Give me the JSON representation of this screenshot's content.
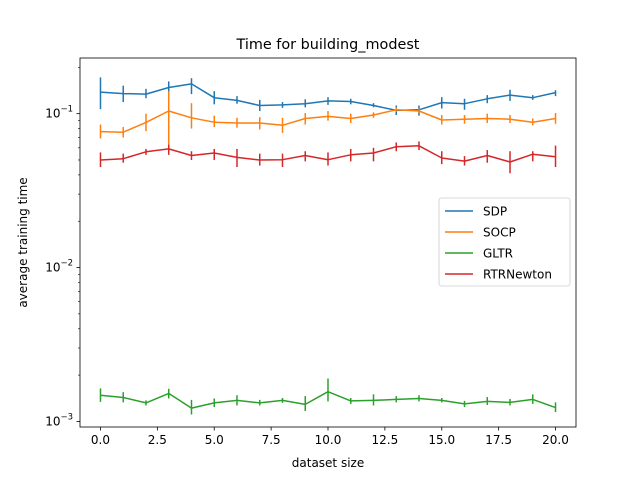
{
  "chart_data": {
    "type": "line",
    "title": "Time for building_modest",
    "xlabel": "dataset size",
    "ylabel": "average training time",
    "yscale": "log",
    "xlim": [
      -0.9,
      20.9
    ],
    "ylim": [
      0.00092,
      0.23
    ],
    "grid": false,
    "legend_position": "center-right",
    "x": [
      0,
      1,
      2,
      3,
      4,
      5,
      6,
      7,
      8,
      9,
      10,
      11,
      12,
      13,
      14,
      15,
      16,
      17,
      18,
      19,
      20
    ],
    "x_ticks": [
      {
        "value": 0,
        "label": "0.0"
      },
      {
        "value": 2.5,
        "label": "2.5"
      },
      {
        "value": 5,
        "label": "5.0"
      },
      {
        "value": 7.5,
        "label": "7.5"
      },
      {
        "value": 10,
        "label": "10.0"
      },
      {
        "value": 12.5,
        "label": "12.5"
      },
      {
        "value": 15,
        "label": "15.0"
      },
      {
        "value": 17.5,
        "label": "17.5"
      },
      {
        "value": 20,
        "label": "20.0"
      }
    ],
    "y_ticks": [
      {
        "value": 0.001,
        "base": "10",
        "exp": "−3"
      },
      {
        "value": 0.01,
        "base": "10",
        "exp": "−2"
      },
      {
        "value": 0.1,
        "base": "10",
        "exp": "−1"
      }
    ],
    "series": [
      {
        "name": "SDP",
        "color": "#1f77b4",
        "values": [
          0.138,
          0.135,
          0.134,
          0.148,
          0.156,
          0.127,
          0.122,
          0.113,
          0.114,
          0.116,
          0.121,
          0.12,
          0.113,
          0.105,
          0.106,
          0.118,
          0.116,
          0.125,
          0.132,
          0.127,
          0.137
        ],
        "err_low": [
          0.107,
          0.119,
          0.126,
          0.133,
          0.134,
          0.115,
          0.116,
          0.104,
          0.109,
          0.11,
          0.114,
          0.115,
          0.11,
          0.098,
          0.097,
          0.108,
          0.106,
          0.117,
          0.121,
          0.123,
          0.13
        ],
        "err_high": [
          0.172,
          0.152,
          0.145,
          0.162,
          0.17,
          0.14,
          0.13,
          0.123,
          0.119,
          0.124,
          0.128,
          0.125,
          0.117,
          0.113,
          0.113,
          0.128,
          0.125,
          0.132,
          0.143,
          0.132,
          0.142
        ]
      },
      {
        "name": "SOCP",
        "color": "#ff7f0e",
        "values": [
          0.0765,
          0.0758,
          0.0877,
          0.104,
          0.094,
          0.088,
          0.087,
          0.087,
          0.084,
          0.093,
          0.096,
          0.093,
          0.098,
          0.106,
          0.104,
          0.091,
          0.092,
          0.093,
          0.092,
          0.088,
          0.093
        ],
        "err_low": [
          0.069,
          0.07,
          0.077,
          0.063,
          0.08,
          0.082,
          0.081,
          0.079,
          0.075,
          0.085,
          0.09,
          0.087,
          0.094,
          0.103,
          0.101,
          0.085,
          0.086,
          0.087,
          0.087,
          0.084,
          0.086
        ],
        "err_high": [
          0.085,
          0.082,
          0.1,
          0.14,
          0.117,
          0.097,
          0.094,
          0.095,
          0.094,
          0.101,
          0.104,
          0.1,
          0.102,
          0.11,
          0.108,
          0.098,
          0.098,
          0.1,
          0.098,
          0.093,
          0.101
        ]
      },
      {
        "name": "GLTR",
        "color": "#2ca02c",
        "values": [
          0.00148,
          0.00143,
          0.00132,
          0.00152,
          0.00122,
          0.00132,
          0.00137,
          0.00132,
          0.00137,
          0.00129,
          0.00156,
          0.00136,
          0.00137,
          0.00139,
          0.00141,
          0.00137,
          0.0013,
          0.00135,
          0.00133,
          0.00139,
          0.00123
        ],
        "err_low": [
          0.00134,
          0.00133,
          0.00127,
          0.00141,
          0.00111,
          0.00124,
          0.00127,
          0.00127,
          0.00132,
          0.00117,
          0.00135,
          0.0013,
          0.00127,
          0.00133,
          0.00135,
          0.00133,
          0.00124,
          0.00128,
          0.00127,
          0.0013,
          0.00115
        ],
        "err_high": [
          0.00164,
          0.00155,
          0.00137,
          0.00163,
          0.00138,
          0.00141,
          0.00148,
          0.00138,
          0.00142,
          0.00146,
          0.0019,
          0.00142,
          0.0015,
          0.00146,
          0.00148,
          0.00142,
          0.00136,
          0.00144,
          0.0014,
          0.0015,
          0.00133
        ]
      },
      {
        "name": "RTRNewton",
        "color": "#d62728",
        "values": [
          0.05,
          0.051,
          0.0565,
          0.059,
          0.0535,
          0.0555,
          0.052,
          0.05,
          0.0502,
          0.0535,
          0.0502,
          0.054,
          0.0555,
          0.061,
          0.0618,
          0.0515,
          0.0492,
          0.0535,
          0.0485,
          0.0545,
          0.0525
        ],
        "err_low": [
          0.045,
          0.048,
          0.054,
          0.054,
          0.05,
          0.05,
          0.045,
          0.046,
          0.045,
          0.049,
          0.046,
          0.049,
          0.049,
          0.057,
          0.058,
          0.047,
          0.046,
          0.048,
          0.041,
          0.049,
          0.045
        ],
        "err_high": [
          0.056,
          0.055,
          0.059,
          0.063,
          0.057,
          0.059,
          0.059,
          0.055,
          0.055,
          0.057,
          0.056,
          0.059,
          0.06,
          0.065,
          0.066,
          0.057,
          0.053,
          0.058,
          0.057,
          0.057,
          0.062
        ]
      }
    ]
  }
}
